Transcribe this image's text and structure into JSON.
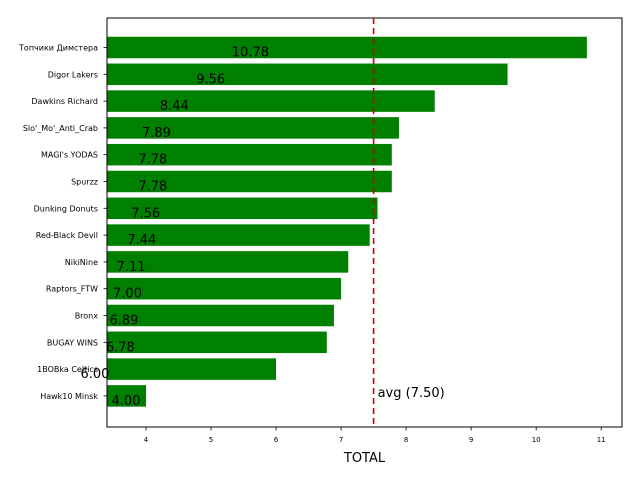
{
  "chart_data": {
    "type": "bar",
    "orientation": "horizontal",
    "categories": [
      "Топчики Димстера",
      "Digor Lakers",
      "Dawkins Richard",
      "Slo'_Mo'_Anti_Crab",
      "MAGI's YODAS",
      "Spurzz",
      "Dunking Donuts",
      "Red-Black Devil",
      "NikiNine",
      "Raptors_FTW",
      "Bronx",
      "BUGAY WINS",
      "1BOBka Celtics",
      "Hawk10 Minsk"
    ],
    "values": [
      10.78,
      9.56,
      8.44,
      7.89,
      7.78,
      7.78,
      7.56,
      7.44,
      7.11,
      7.0,
      6.89,
      6.78,
      6.0,
      4.0
    ],
    "value_labels": [
      "10.78",
      "9.56",
      "8.44",
      "7.89",
      "7.78",
      "7.78",
      "7.56",
      "7.44",
      "7.11",
      "7.00",
      "6.89",
      "6.78",
      "6.00",
      "4.00"
    ],
    "xlabel": "TOTAL",
    "ylabel": "",
    "title": "",
    "xlim": [
      3.4,
      11.32
    ],
    "xticks": [
      4,
      5,
      6,
      7,
      8,
      9,
      10,
      11
    ],
    "grid": false,
    "bar_color": "#008000",
    "reference_line": {
      "value": 7.5,
      "label": "avg (7.50)",
      "color": "#cc0000",
      "style": "dashed"
    }
  }
}
